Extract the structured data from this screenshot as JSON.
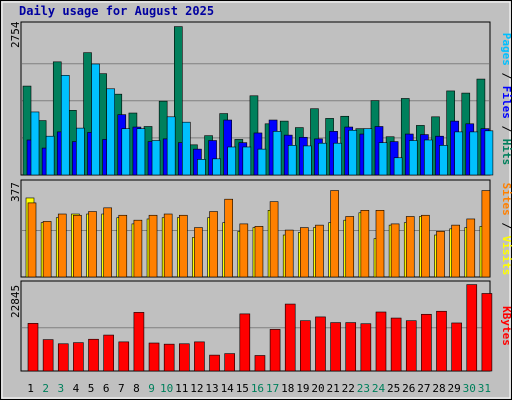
{
  "chart_data": {
    "type": "bar",
    "title": "Daily usage for August 2025",
    "colors": {
      "hits": "#00805c",
      "files": "#0000ff",
      "pages": "#00c0ff",
      "visits": "#ffff00",
      "sites": "#ff8000",
      "kbytes": "#ff0000",
      "weekend_label": "#00805c",
      "weekday_label": "#000000",
      "panel_bg": "#c0c0c0",
      "gridline": "#808080"
    },
    "categories": [
      "1",
      "2",
      "3",
      "4",
      "5",
      "6",
      "7",
      "8",
      "9",
      "10",
      "11",
      "12",
      "13",
      "14",
      "15",
      "16",
      "17",
      "18",
      "19",
      "20",
      "21",
      "22",
      "23",
      "24",
      "25",
      "26",
      "27",
      "28",
      "29",
      "30",
      "31"
    ],
    "weekend_days": [
      "2",
      "3",
      "9",
      "10",
      "16",
      "17",
      "23",
      "24",
      "30",
      "31"
    ],
    "panels": [
      {
        "id": "hits_files_pages",
        "ymax_label": "2754",
        "ymax": 2754,
        "right_label": [
          {
            "text": "Pages",
            "color": "#00c0ff"
          },
          {
            "text": " / ",
            "color": "#000000"
          },
          {
            "text": "Files",
            "color": "#0000ff"
          },
          {
            "text": " / ",
            "color": "#000000"
          },
          {
            "text": "Hits",
            "color": "#00805c"
          }
        ],
        "series": [
          {
            "name": "Hits",
            "color": "#00805c",
            "values": [
              1650,
              1010,
              2100,
              1200,
              2270,
              1880,
              1500,
              1150,
              900,
              1370,
              2754,
              560,
              730,
              1140,
              660,
              1470,
              950,
              1000,
              880,
              1230,
              1050,
              1090,
              860,
              1380,
              710,
              1420,
              920,
              1080,
              1560,
              1520,
              1780
            ]
          },
          {
            "name": "Files",
            "color": "#0000ff",
            "values": [
              650,
              500,
              800,
              620,
              790,
              660,
              1120,
              890,
              620,
              670,
              600,
              480,
              640,
              1020,
              600,
              780,
              1020,
              740,
              700,
              670,
              810,
              890,
              760,
              900,
              620,
              760,
              750,
              720,
              1000,
              950,
              860
            ]
          },
          {
            "name": "Pages",
            "color": "#00c0ff",
            "values": [
              1170,
              720,
              1850,
              870,
              2060,
              1600,
              860,
              860,
              640,
              1080,
              980,
              290,
              300,
              520,
              520,
              480,
              810,
              550,
              540,
              590,
              590,
              830,
              860,
              600,
              320,
              640,
              650,
              550,
              800,
              800,
              820
            ]
          }
        ]
      },
      {
        "id": "visits_sites",
        "ymax_label": "377",
        "ymax": 377,
        "right_label": [
          {
            "text": "Sites",
            "color": "#ff8000"
          },
          {
            "text": " / ",
            "color": "#000000"
          },
          {
            "text": "Visits",
            "color": "#ffff00"
          }
        ],
        "series": [
          {
            "name": "Visits",
            "color": "#ffff00",
            "values": [
              320,
              220,
              240,
              255,
              255,
              255,
              240,
              215,
              235,
              240,
              240,
              160,
              240,
              220,
              185,
              200,
              270,
              170,
              180,
              200,
              220,
              230,
              260,
              155,
              210,
              220,
              245,
              170,
              195,
              200,
              205
            ]
          },
          {
            "name": "Sites",
            "color": "#ff8000",
            "values": [
              300,
              225,
              255,
              250,
              265,
              280,
              250,
              230,
              250,
              255,
              250,
              200,
              265,
              315,
              215,
              205,
              305,
              190,
              200,
              210,
              350,
              245,
              270,
              270,
              215,
              245,
              250,
              185,
              210,
              235,
              350
            ]
          }
        ]
      },
      {
        "id": "kbytes",
        "ymax_label": "22845",
        "ymax": 22845,
        "right_label": [
          {
            "text": "KBytes",
            "color": "#ff0000"
          }
        ],
        "series": [
          {
            "name": "KBytes",
            "color": "#ff0000",
            "values": [
              12600,
              8300,
              7200,
              7500,
              8400,
              9500,
              7700,
              15500,
              7400,
              7100,
              7200,
              7700,
              4200,
              4600,
              15100,
              4100,
              11000,
              17700,
              13300,
              14300,
              12800,
              12800,
              12500,
              15600,
              14000,
              13300,
              15000,
              15800,
              12700,
              22845,
              20500
            ]
          }
        ]
      }
    ]
  }
}
